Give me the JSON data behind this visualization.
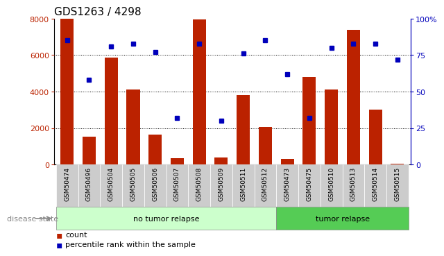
{
  "title": "GDS1263 / 4298",
  "categories": [
    "GSM50474",
    "GSM50496",
    "GSM50504",
    "GSM50505",
    "GSM50506",
    "GSM50507",
    "GSM50508",
    "GSM50509",
    "GSM50511",
    "GSM50512",
    "GSM50473",
    "GSM50475",
    "GSM50510",
    "GSM50513",
    "GSM50514",
    "GSM50515"
  ],
  "counts": [
    8000,
    1550,
    5850,
    4100,
    1650,
    350,
    7950,
    400,
    3800,
    2050,
    300,
    4800,
    4100,
    7400,
    3000,
    50
  ],
  "percentiles": [
    85,
    58,
    81,
    83,
    77,
    32,
    83,
    30,
    76,
    85,
    62,
    32,
    80,
    83,
    83,
    72
  ],
  "no_tumor_samples": 10,
  "tumor_samples": 6,
  "left_ylim": [
    0,
    8000
  ],
  "right_ylim": [
    0,
    100
  ],
  "left_yticks": [
    0,
    2000,
    4000,
    6000,
    8000
  ],
  "right_yticks": [
    0,
    25,
    50,
    75,
    100
  ],
  "right_yticklabels": [
    "0",
    "25",
    "50",
    "75",
    "100%"
  ],
  "bar_color": "#BB2200",
  "dot_color": "#0000BB",
  "no_tumor_bg": "#CCFFCC",
  "tumor_bg": "#55CC55",
  "tick_bg": "#CCCCCC",
  "title_fontsize": 11,
  "legend_count_label": "count",
  "legend_pct_label": "percentile rank within the sample",
  "disease_state_label": "disease state",
  "no_tumor_label": "no tumor relapse",
  "tumor_label": "tumor relapse"
}
